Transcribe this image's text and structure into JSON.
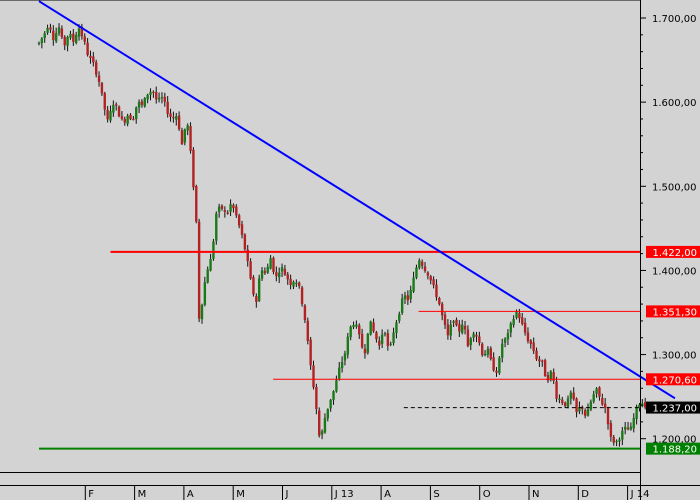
{
  "chart_data": {
    "type": "candlestick",
    "title": "",
    "xlabel": "",
    "ylabel": "",
    "ylim": [
      1180,
      1720
    ],
    "grid": false,
    "colors": {
      "background": "#d3d3d3",
      "up_candle": "#1a7a1a",
      "down_candle": "#b22222",
      "wick": "#111111",
      "trendline": "#0000ff",
      "resistance": "#ff0000",
      "support": "#008000",
      "current_price": "#000000"
    },
    "y_ticks": [
      {
        "value": 1700,
        "label": "1.700,00"
      },
      {
        "value": 1600,
        "label": "1.600,00"
      },
      {
        "value": 1500,
        "label": "1.500,00"
      },
      {
        "value": 1400,
        "label": "1.400,00"
      },
      {
        "value": 1300,
        "label": "1.300,00"
      },
      {
        "value": 1200,
        "label": "1.200,00"
      }
    ],
    "x_ticks": [
      {
        "month": 1,
        "label": "F"
      },
      {
        "month": 2,
        "label": "M"
      },
      {
        "month": 3,
        "label": "A"
      },
      {
        "month": 4,
        "label": "M"
      },
      {
        "month": 5,
        "label": "J"
      },
      {
        "month": 6,
        "label": "J 13"
      },
      {
        "month": 7,
        "label": "A"
      },
      {
        "month": 8,
        "label": "S"
      },
      {
        "month": 9,
        "label": "O"
      },
      {
        "month": 10,
        "label": "N"
      },
      {
        "month": 11,
        "label": "D"
      },
      {
        "month": 12,
        "label": "J 14"
      }
    ],
    "price_levels": [
      {
        "value": 1422.0,
        "label": "1.422,00",
        "style": "resistance",
        "from_month": 1.45,
        "width": 2
      },
      {
        "value": 1351.3,
        "label": "1.351,30",
        "style": "resistance",
        "from_month": 7.7,
        "width": 1
      },
      {
        "value": 1270.6,
        "label": "1.270,60",
        "style": "resistance",
        "from_month": 4.75,
        "width": 1
      },
      {
        "value": 1237.0,
        "label": "1.237,00",
        "style": "current",
        "from_month": 7.4,
        "width": 1
      },
      {
        "value": 1188.2,
        "label": "1.188,20",
        "style": "support",
        "from_month": 0,
        "width": 2
      }
    ],
    "trendline": {
      "from": [
        0,
        1720
      ],
      "to": [
        12.9,
        1248
      ]
    },
    "price_path": [
      [
        0.0,
        1670
      ],
      [
        0.1,
        1680
      ],
      [
        0.2,
        1695
      ],
      [
        0.3,
        1675
      ],
      [
        0.4,
        1690
      ],
      [
        0.5,
        1665
      ],
      [
        0.6,
        1682
      ],
      [
        0.7,
        1672
      ],
      [
        0.8,
        1690
      ],
      [
        0.9,
        1675
      ],
      [
        1.0,
        1655
      ],
      [
        1.1,
        1645
      ],
      [
        1.2,
        1630
      ],
      [
        1.3,
        1600
      ],
      [
        1.4,
        1575
      ],
      [
        1.5,
        1600
      ],
      [
        1.6,
        1590
      ],
      [
        1.7,
        1575
      ],
      [
        1.8,
        1585
      ],
      [
        1.9,
        1580
      ],
      [
        2.0,
        1600
      ],
      [
        2.1,
        1595
      ],
      [
        2.2,
        1610
      ],
      [
        2.3,
        1615
      ],
      [
        2.4,
        1600
      ],
      [
        2.5,
        1605
      ],
      [
        2.6,
        1590
      ],
      [
        2.7,
        1580
      ],
      [
        2.8,
        1585
      ],
      [
        2.9,
        1550
      ],
      [
        3.0,
        1580
      ],
      [
        3.1,
        1525
      ],
      [
        3.2,
        1450
      ],
      [
        3.25,
        1340
      ],
      [
        3.3,
        1360
      ],
      [
        3.4,
        1400
      ],
      [
        3.5,
        1415
      ],
      [
        3.6,
        1470
      ],
      [
        3.7,
        1475
      ],
      [
        3.8,
        1465
      ],
      [
        3.9,
        1480
      ],
      [
        4.0,
        1465
      ],
      [
        4.1,
        1445
      ],
      [
        4.2,
        1420
      ],
      [
        4.3,
        1385
      ],
      [
        4.4,
        1360
      ],
      [
        4.5,
        1405
      ],
      [
        4.6,
        1395
      ],
      [
        4.7,
        1415
      ],
      [
        4.8,
        1390
      ],
      [
        4.9,
        1405
      ],
      [
        5.0,
        1395
      ],
      [
        5.1,
        1385
      ],
      [
        5.2,
        1390
      ],
      [
        5.3,
        1375
      ],
      [
        5.4,
        1340
      ],
      [
        5.5,
        1290
      ],
      [
        5.6,
        1250
      ],
      [
        5.7,
        1195
      ],
      [
        5.8,
        1225
      ],
      [
        5.9,
        1245
      ],
      [
        6.0,
        1260
      ],
      [
        6.1,
        1285
      ],
      [
        6.2,
        1300
      ],
      [
        6.3,
        1330
      ],
      [
        6.4,
        1340
      ],
      [
        6.5,
        1320
      ],
      [
        6.6,
        1300
      ],
      [
        6.7,
        1340
      ],
      [
        6.8,
        1325
      ],
      [
        6.9,
        1310
      ],
      [
        7.0,
        1335
      ],
      [
        7.1,
        1300
      ],
      [
        7.2,
        1330
      ],
      [
        7.3,
        1350
      ],
      [
        7.4,
        1370
      ],
      [
        7.5,
        1365
      ],
      [
        7.6,
        1390
      ],
      [
        7.7,
        1415
      ],
      [
        7.8,
        1405
      ],
      [
        7.9,
        1395
      ],
      [
        8.0,
        1380
      ],
      [
        8.1,
        1365
      ],
      [
        8.2,
        1340
      ],
      [
        8.3,
        1320
      ],
      [
        8.4,
        1345
      ],
      [
        8.5,
        1325
      ],
      [
        8.6,
        1340
      ],
      [
        8.7,
        1310
      ],
      [
        8.8,
        1330
      ],
      [
        8.9,
        1320
      ],
      [
        9.0,
        1300
      ],
      [
        9.1,
        1305
      ],
      [
        9.2,
        1285
      ],
      [
        9.3,
        1280
      ],
      [
        9.4,
        1315
      ],
      [
        9.5,
        1320
      ],
      [
        9.6,
        1340
      ],
      [
        9.7,
        1352
      ],
      [
        9.8,
        1335
      ],
      [
        9.9,
        1320
      ],
      [
        10.0,
        1310
      ],
      [
        10.1,
        1295
      ],
      [
        10.2,
        1290
      ],
      [
        10.3,
        1270
      ],
      [
        10.4,
        1280
      ],
      [
        10.5,
        1250
      ],
      [
        10.6,
        1245
      ],
      [
        10.7,
        1240
      ],
      [
        10.8,
        1255
      ],
      [
        10.9,
        1230
      ],
      [
        11.0,
        1240
      ],
      [
        11.1,
        1225
      ],
      [
        11.2,
        1245
      ],
      [
        11.3,
        1258
      ],
      [
        11.4,
        1245
      ],
      [
        11.5,
        1235
      ],
      [
        11.6,
        1200
      ],
      [
        11.7,
        1195
      ],
      [
        11.8,
        1205
      ],
      [
        11.9,
        1212
      ],
      [
        12.0,
        1210
      ],
      [
        12.1,
        1232
      ],
      [
        12.2,
        1245
      ],
      [
        12.3,
        1240
      ],
      [
        12.35,
        1234
      ]
    ]
  }
}
